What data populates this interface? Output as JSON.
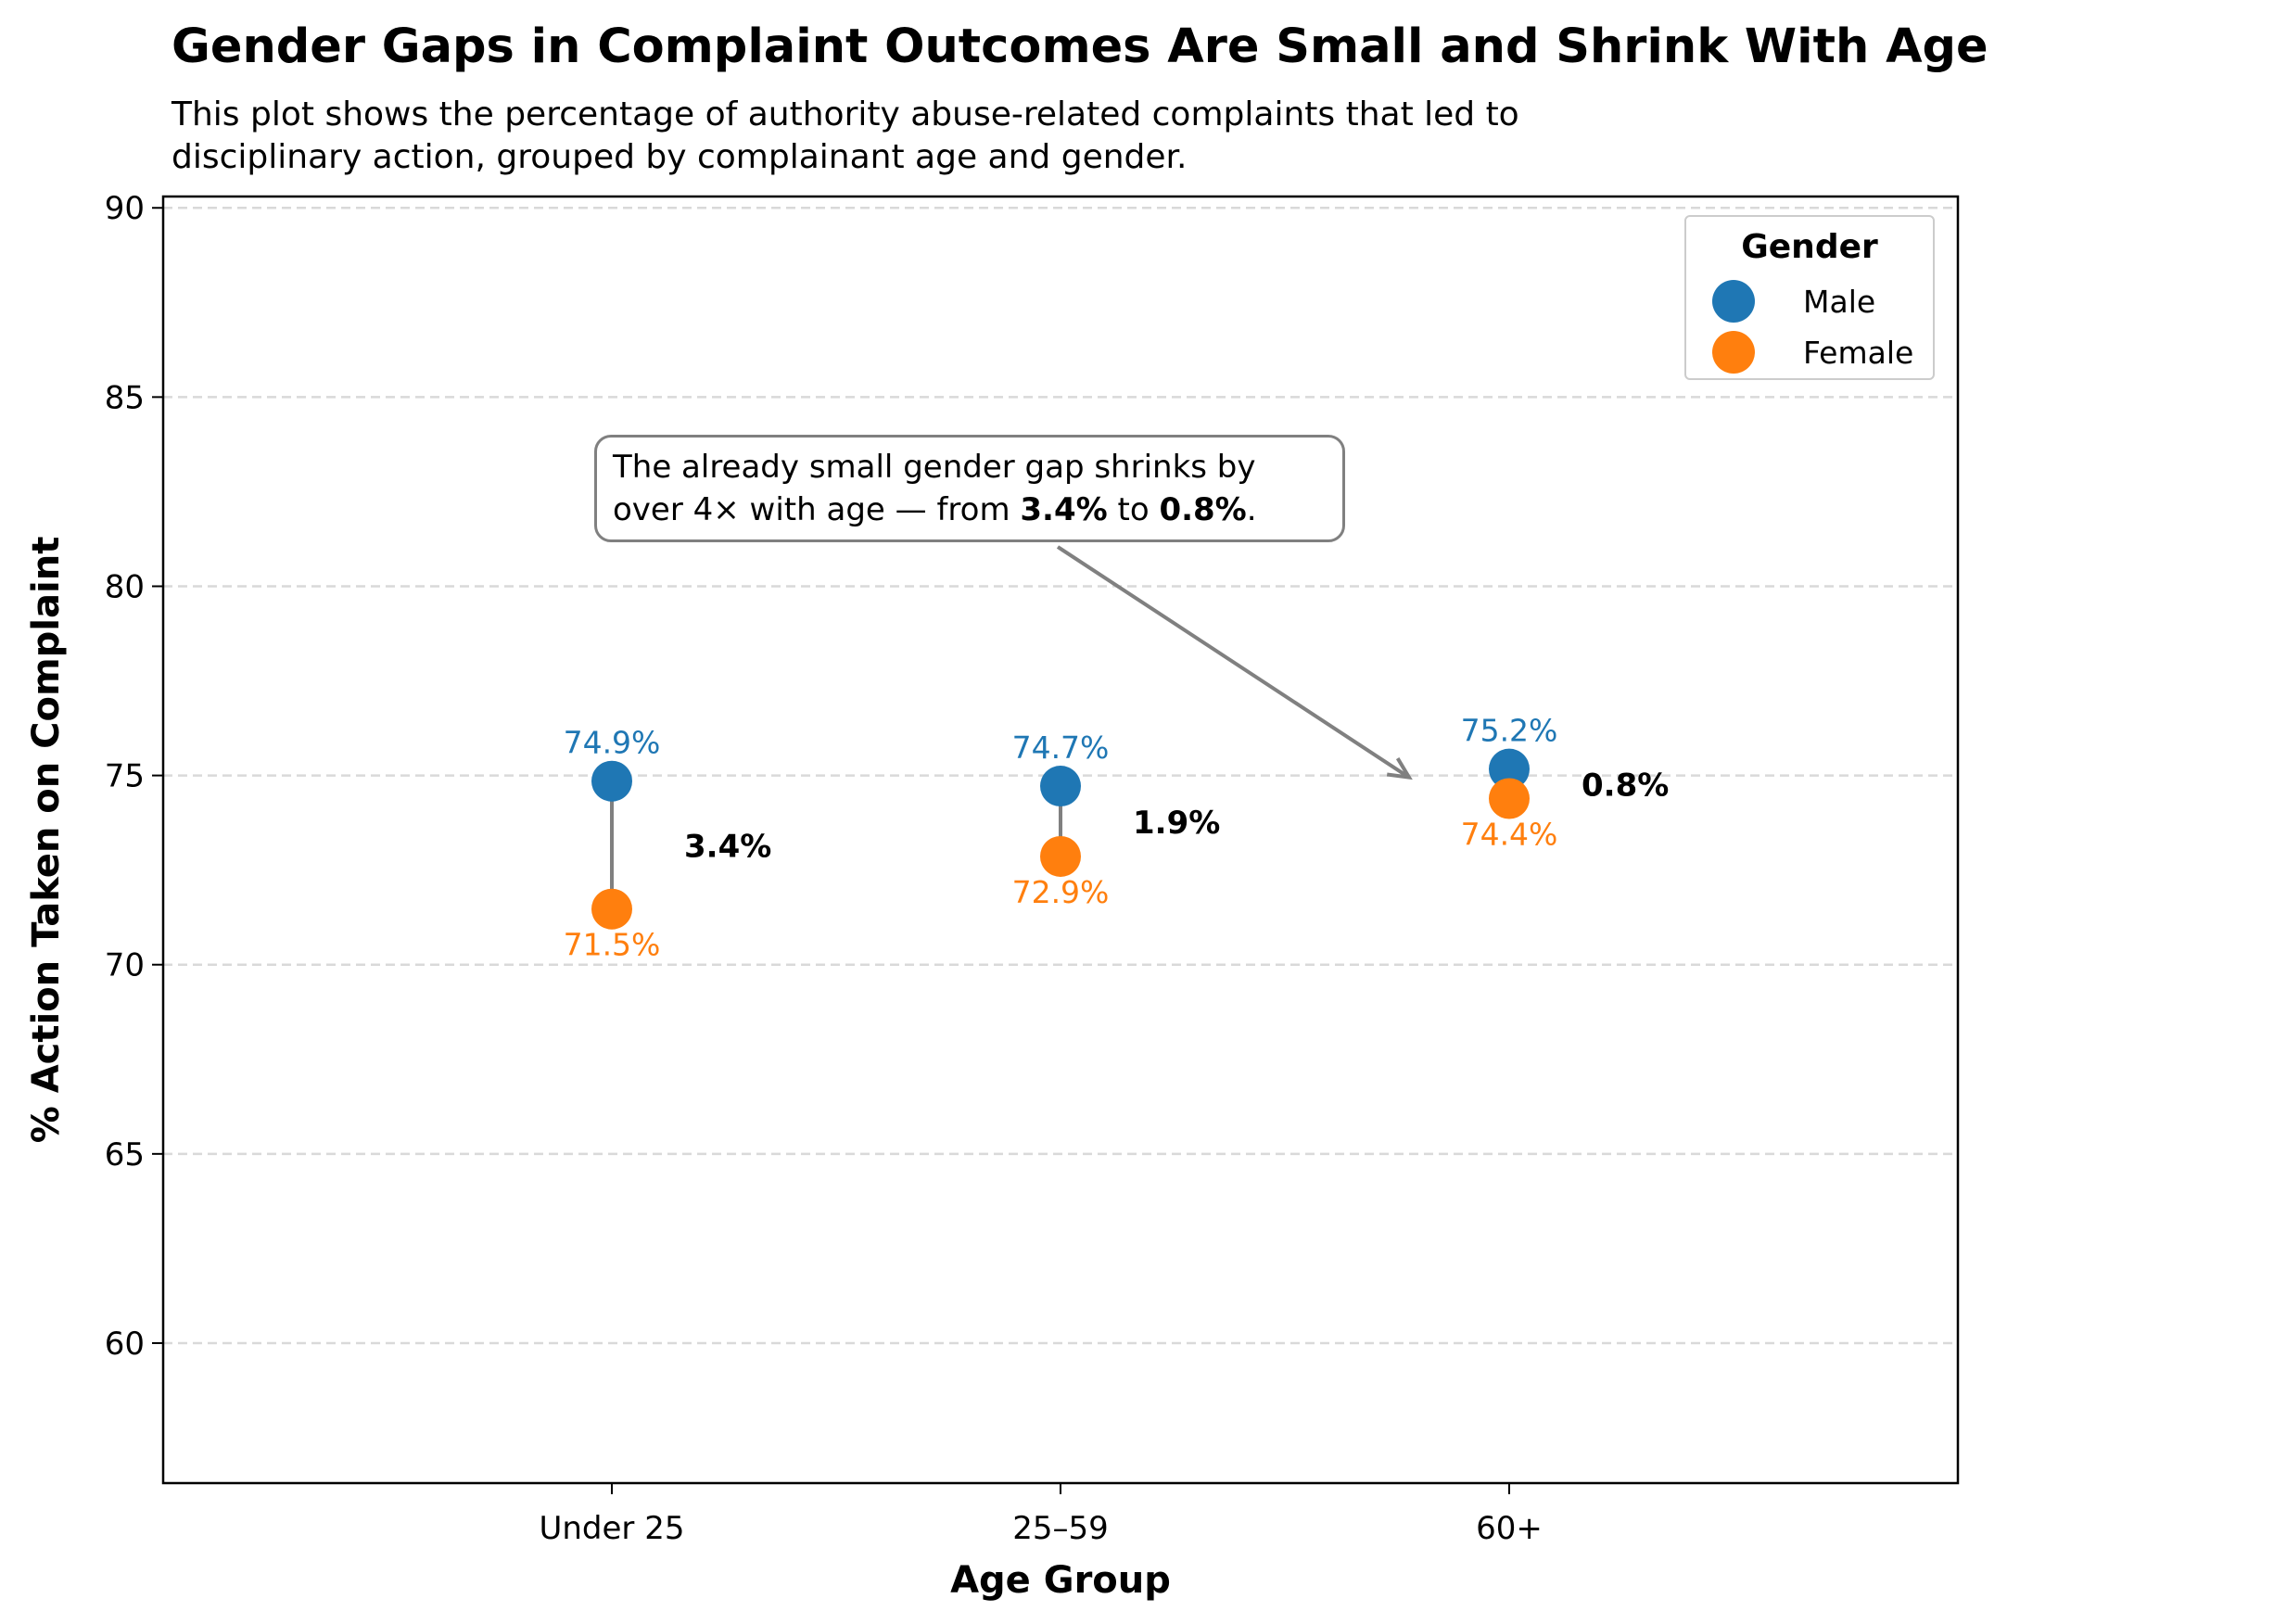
{
  "title": "Gender Gaps in Complaint Outcomes Are Small and Shrink With Age",
  "subtitle": "This plot shows the percentage of authority abuse-related complaints that led to\ndisciplinary action, grouped by complainant age and gender.",
  "annotation": {
    "line1": "The already small gender gap shrinks by",
    "line2_prefix": "over 4× with age — from ",
    "line2_bold1": "3.4%",
    "line2_mid": " to ",
    "line2_bold2": "0.8%",
    "line2_suffix": "."
  },
  "legend": {
    "title": "Gender",
    "items": [
      {
        "label": "Male",
        "color": "#1f77b4"
      },
      {
        "label": "Female",
        "color": "#ff7f0e"
      }
    ]
  },
  "chart_data": {
    "type": "scatter",
    "categories": [
      "Under 25",
      "25–59",
      "60+"
    ],
    "series": [
      {
        "name": "Male",
        "color": "#1f77b4",
        "values": [
          74.85,
          74.72,
          75.17
        ],
        "labels": [
          "74.9%",
          "74.7%",
          "75.2%"
        ]
      },
      {
        "name": "Female",
        "color": "#ff7f0e",
        "values": [
          71.47,
          72.86,
          74.39
        ],
        "labels": [
          "71.5%",
          "72.9%",
          "74.4%"
        ]
      }
    ],
    "gap_labels": [
      "3.4%",
      "1.9%",
      "0.8%"
    ],
    "xlabel": "Age Group",
    "ylabel": "% Action Taken on Complaint",
    "ylim": [
      56.3,
      90.3
    ],
    "yticks": [
      60,
      65,
      70,
      75,
      80,
      85,
      90
    ],
    "xlim": [
      -1,
      3
    ],
    "grid": "horizontal dashed",
    "legend_position": "top-right"
  }
}
